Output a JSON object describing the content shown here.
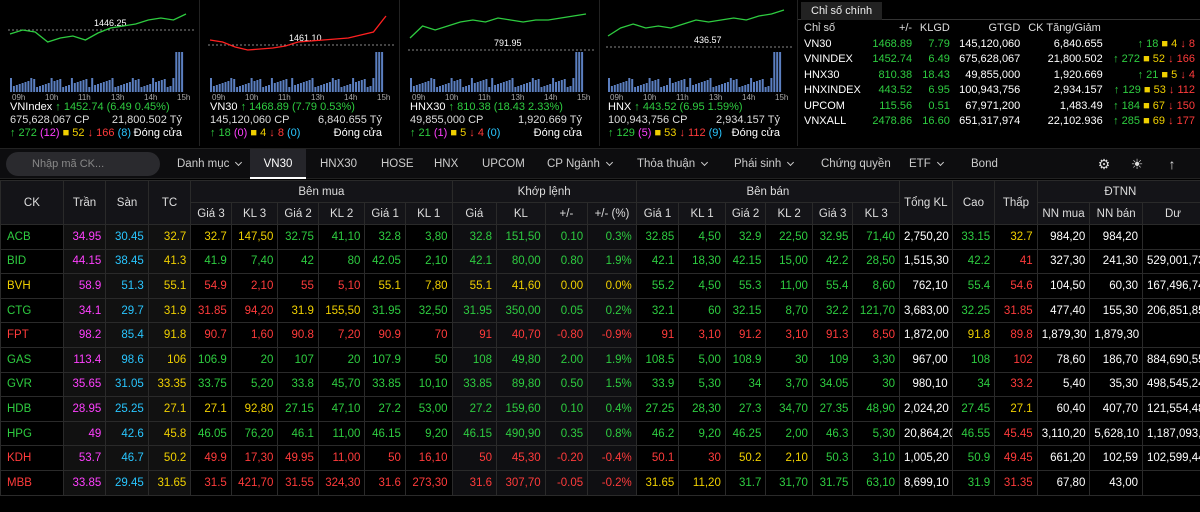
{
  "mini_charts": [
    {
      "name": "VNIndex",
      "ref_label": "1446.25",
      "value": "1452.74",
      "change": "(6.49  0.45%)",
      "vol": "675,628,067 CP",
      "val": "21,800.502 Tỷ",
      "adv": "272",
      "adv_c": "(12)",
      "unch": "52",
      "dec": "166",
      "dec_c": "(8)",
      "status": "Đóng cửa",
      "times": [
        "09h",
        "10h",
        "11h",
        "13h",
        "14h",
        "15h"
      ]
    },
    {
      "name": "VN30",
      "ref_label": "1461.10",
      "value": "1468.89",
      "change": "(7.79  0.53%)",
      "vol": "145,120,060 CP",
      "val": "6,840.655 Tỷ",
      "adv": "18",
      "adv_c": "(0)",
      "unch": "4",
      "dec": "8",
      "dec_c": "(0)",
      "status": "Đóng cửa",
      "times": [
        "09h",
        "10h",
        "11h",
        "13h",
        "14h",
        "15h"
      ]
    },
    {
      "name": "HNX30",
      "ref_label": "791.95",
      "value": "810.38",
      "change": "(18.43  2.33%)",
      "vol": "49,855,000 CP",
      "val": "1,920.669 Tỷ",
      "adv": "21",
      "adv_c": "(1)",
      "unch": "5",
      "dec": "4",
      "dec_c": "(0)",
      "status": "Đóng cửa",
      "times": [
        "09h",
        "10h",
        "11h",
        "13h",
        "14h",
        "15h"
      ]
    },
    {
      "name": "HNX",
      "ref_label": "436.57",
      "value": "443.52",
      "change": "(6.95  1.59%)",
      "vol": "100,943,756 CP",
      "val": "2,934.157 Tỷ",
      "adv": "129",
      "adv_c": "(5)",
      "unch": "53",
      "dec": "112",
      "dec_c": "(9)",
      "status": "Đóng cửa",
      "times": [
        "09h",
        "10h",
        "11h",
        "13h",
        "14h",
        "15h"
      ]
    }
  ],
  "index_panel": {
    "tab": "Chỉ số chính",
    "headers": [
      "Chỉ số",
      "+/-",
      "KLGD",
      "GTGD",
      "CK Tăng/Giảm"
    ],
    "rows": [
      {
        "name": "VN30",
        "value": "1468.89",
        "chg": "7.79",
        "vol": "145,120,060",
        "val": "6,840.655",
        "up": "18",
        "eq": "4",
        "down": "8",
        "color": "g"
      },
      {
        "name": "VNINDEX",
        "value": "1452.74",
        "chg": "6.49",
        "vol": "675,628,067",
        "val": "21,800.502",
        "up": "272",
        "eq": "52",
        "down": "166",
        "color": "g"
      },
      {
        "name": "HNX30",
        "value": "810.38",
        "chg": "18.43",
        "vol": "49,855,000",
        "val": "1,920.669",
        "up": "21",
        "eq": "5",
        "down": "4",
        "color": "g"
      },
      {
        "name": "HNXINDEX",
        "value": "443.52",
        "chg": "6.95",
        "vol": "100,943,756",
        "val": "2,934.157",
        "up": "129",
        "eq": "53",
        "down": "112",
        "color": "g"
      },
      {
        "name": "UPCOM",
        "value": "115.56",
        "chg": "0.51",
        "vol": "67,971,200",
        "val": "1,483.49",
        "up": "184",
        "eq": "67",
        "down": "150",
        "color": "g"
      },
      {
        "name": "VNXALL",
        "value": "2478.86",
        "chg": "16.60",
        "vol": "651,317,974",
        "val": "22,102.936",
        "up": "285",
        "eq": "69",
        "down": "177",
        "color": "g"
      }
    ]
  },
  "toolbar": {
    "search_placeholder": "Nhập mã CK...",
    "tabs": [
      {
        "label": "Danh mục",
        "dropdown": true
      },
      {
        "label": "VN30",
        "dropdown": false,
        "active": true
      },
      {
        "label": "HNX30",
        "dropdown": false
      },
      {
        "label": "HOSE",
        "dropdown": false
      },
      {
        "label": "HNX",
        "dropdown": false
      },
      {
        "label": "UPCOM",
        "dropdown": false
      },
      {
        "label": "CP Ngành",
        "dropdown": true
      },
      {
        "label": "Thỏa thuận",
        "dropdown": true
      },
      {
        "label": "Phái sinh",
        "dropdown": true
      },
      {
        "label": "Chứng quyền",
        "dropdown": false
      },
      {
        "label": "ETF",
        "dropdown": true
      },
      {
        "label": "Bond",
        "dropdown": false
      }
    ]
  },
  "board": {
    "group_headers": {
      "buy": "Bên mua",
      "match": "Khớp lệnh",
      "sell": "Bên bán",
      "foreign": "ĐTNN"
    },
    "headers": {
      "ck": "CK",
      "ceil": "Trần",
      "floor": "Sàn",
      "ref": "TC",
      "total": "Tổng KL",
      "high": "Cao",
      "low": "Thấp"
    },
    "sub_headers": [
      "Giá 3",
      "KL 3",
      "Giá 2",
      "KL 2",
      "Giá 1",
      "KL 1",
      "Giá",
      "KL",
      "+/-",
      "+/- (%)",
      "Giá 1",
      "KL 1",
      "Giá 2",
      "KL 2",
      "Giá 3",
      "KL 3",
      "NN mua",
      "NN bán",
      "Dư"
    ],
    "rows": [
      {
        "ck": "ACB",
        "c": "g",
        "ceil": "34.95",
        "floor": "30.45",
        "ref": "32.7",
        "b3": [
          "32.7",
          "y"
        ],
        "kb3": "147,50",
        "b2": [
          "32.75",
          "g"
        ],
        "kb2": "41,10",
        "b1": [
          "32.8",
          "g"
        ],
        "kb1": "3,80",
        "p": [
          "32.8",
          "g"
        ],
        "kl": "151,50",
        "ch": "0.10",
        "pc": "0.3%",
        "s1": [
          "32.85",
          "g"
        ],
        "ks1": "4,50",
        "s2": [
          "32.9",
          "g"
        ],
        "ks2": "22,50",
        "s3": [
          "32.95",
          "g"
        ],
        "ks3": "71,40",
        "tot": "2,750,20",
        "hi": [
          "33.15",
          "g"
        ],
        "lo": [
          "32.7",
          "y"
        ],
        "nnb": "984,20",
        "nns": "984,20",
        "du": ""
      },
      {
        "ck": "BID",
        "c": "g",
        "ceil": "44.15",
        "floor": "38.45",
        "ref": "41.3",
        "b3": [
          "41.9",
          "g"
        ],
        "kb3": "7,40",
        "b2": [
          "42",
          "g"
        ],
        "kb2": "80",
        "b1": [
          "42.05",
          "g"
        ],
        "kb1": "2,10",
        "p": [
          "42.1",
          "g"
        ],
        "kl": "80,00",
        "ch": "0.80",
        "pc": "1.9%",
        "s1": [
          "42.1",
          "g"
        ],
        "ks1": "18,30",
        "s2": [
          "42.15",
          "g"
        ],
        "ks2": "15,00",
        "s3": [
          "42.2",
          "g"
        ],
        "ks3": "28,50",
        "tot": "1,515,30",
        "hi": [
          "42.2",
          "g"
        ],
        "lo": [
          "41",
          "r"
        ],
        "nnb": "327,30",
        "nns": "241,30",
        "du": "529,001,73"
      },
      {
        "ck": "BVH",
        "c": "y",
        "ceil": "58.9",
        "floor": "51.3",
        "ref": "55.1",
        "b3": [
          "54.9",
          "r"
        ],
        "kb3": "2,10",
        "b2": [
          "55",
          "r"
        ],
        "kb2": "5,10",
        "b1": [
          "55.1",
          "y"
        ],
        "kb1": "7,80",
        "p": [
          "55.1",
          "y"
        ],
        "kl": "41,60",
        "ch": "0.00",
        "pc": "0.0%",
        "s1": [
          "55.2",
          "g"
        ],
        "ks1": "4,50",
        "s2": [
          "55.3",
          "g"
        ],
        "ks2": "11,00",
        "s3": [
          "55.4",
          "g"
        ],
        "ks3": "8,60",
        "tot": "762,10",
        "hi": [
          "55.4",
          "g"
        ],
        "lo": [
          "54.6",
          "r"
        ],
        "nnb": "104,50",
        "nns": "60,30",
        "du": "167,496,74"
      },
      {
        "ck": "CTG",
        "c": "g",
        "ceil": "34.1",
        "floor": "29.7",
        "ref": "31.9",
        "b3": [
          "31.85",
          "r"
        ],
        "kb3": "94,20",
        "b2": [
          "31.9",
          "y"
        ],
        "kb2": "155,50",
        "b1": [
          "31.95",
          "g"
        ],
        "kb1": "32,50",
        "p": [
          "31.95",
          "g"
        ],
        "kl": "350,00",
        "ch": "0.05",
        "pc": "0.2%",
        "s1": [
          "32.1",
          "g"
        ],
        "ks1": "60",
        "s2": [
          "32.15",
          "g"
        ],
        "ks2": "8,70",
        "s3": [
          "32.2",
          "g"
        ],
        "ks3": "121,70",
        "tot": "3,683,00",
        "hi": [
          "32.25",
          "g"
        ],
        "lo": [
          "31.85",
          "r"
        ],
        "nnb": "477,40",
        "nns": "155,30",
        "du": "206,851,85"
      },
      {
        "ck": "FPT",
        "c": "r",
        "ceil": "98.2",
        "floor": "85.4",
        "ref": "91.8",
        "b3": [
          "90.7",
          "r"
        ],
        "kb3": "1,60",
        "b2": [
          "90.8",
          "r"
        ],
        "kb2": "7,20",
        "b1": [
          "90.9",
          "r"
        ],
        "kb1": "70",
        "p": [
          "91",
          "r"
        ],
        "kl": "40,70",
        "ch": "-0.80",
        "pc": "-0.9%",
        "s1": [
          "91",
          "r"
        ],
        "ks1": "3,10",
        "s2": [
          "91.2",
          "r"
        ],
        "ks2": "3,10",
        "s3": [
          "91.3",
          "r"
        ],
        "ks3": "8,50",
        "tot": "1,872,00",
        "hi": [
          "91.8",
          "y"
        ],
        "lo": [
          "89.8",
          "r"
        ],
        "nnb": "1,879,30",
        "nns": "1,879,30",
        "du": ""
      },
      {
        "ck": "GAS",
        "c": "g",
        "ceil": "113.4",
        "floor": "98.6",
        "ref": "106",
        "b3": [
          "106.9",
          "g"
        ],
        "kb3": "20",
        "b2": [
          "107",
          "g"
        ],
        "kb2": "20",
        "b1": [
          "107.9",
          "g"
        ],
        "kb1": "50",
        "p": [
          "108",
          "g"
        ],
        "kl": "49,80",
        "ch": "2.00",
        "pc": "1.9%",
        "s1": [
          "108.5",
          "g"
        ],
        "ks1": "5,00",
        "s2": [
          "108.9",
          "g"
        ],
        "ks2": "30",
        "s3": [
          "109",
          "g"
        ],
        "ks3": "3,30",
        "tot": "967,00",
        "hi": [
          "108",
          "g"
        ],
        "lo": [
          "102",
          "r"
        ],
        "nnb": "78,60",
        "nns": "186,70",
        "du": "884,690,55"
      },
      {
        "ck": "GVR",
        "c": "g",
        "ceil": "35.65",
        "floor": "31.05",
        "ref": "33.35",
        "b3": [
          "33.75",
          "g"
        ],
        "kb3": "5,20",
        "b2": [
          "33.8",
          "g"
        ],
        "kb2": "45,70",
        "b1": [
          "33.85",
          "g"
        ],
        "kb1": "10,10",
        "p": [
          "33.85",
          "g"
        ],
        "kl": "89,80",
        "ch": "0.50",
        "pc": "1.5%",
        "s1": [
          "33.9",
          "g"
        ],
        "ks1": "5,30",
        "s2": [
          "34",
          "g"
        ],
        "ks2": "3,70",
        "s3": [
          "34.05",
          "g"
        ],
        "ks3": "30",
        "tot": "980,10",
        "hi": [
          "34",
          "g"
        ],
        "lo": [
          "33.2",
          "r"
        ],
        "nnb": "5,40",
        "nns": "35,30",
        "du": "498,545,24"
      },
      {
        "ck": "HDB",
        "c": "g",
        "ceil": "28.95",
        "floor": "25.25",
        "ref": "27.1",
        "b3": [
          "27.1",
          "y"
        ],
        "kb3": "92,80",
        "b2": [
          "27.15",
          "g"
        ],
        "kb2": "47,10",
        "b1": [
          "27.2",
          "g"
        ],
        "kb1": "53,00",
        "p": [
          "27.2",
          "g"
        ],
        "kl": "159,60",
        "ch": "0.10",
        "pc": "0.4%",
        "s1": [
          "27.25",
          "g"
        ],
        "ks1": "28,30",
        "s2": [
          "27.3",
          "g"
        ],
        "ks2": "34,70",
        "s3": [
          "27.35",
          "g"
        ],
        "ks3": "48,90",
        "tot": "2,024,20",
        "hi": [
          "27.45",
          "g"
        ],
        "lo": [
          "27.1",
          "y"
        ],
        "nnb": "60,40",
        "nns": "407,70",
        "du": "121,554,48"
      },
      {
        "ck": "HPG",
        "c": "g",
        "ceil": "49",
        "floor": "42.6",
        "ref": "45.8",
        "b3": [
          "46.05",
          "g"
        ],
        "kb3": "76,20",
        "b2": [
          "46.1",
          "g"
        ],
        "kb2": "11,00",
        "b1": [
          "46.15",
          "g"
        ],
        "kb1": "9,20",
        "p": [
          "46.15",
          "g"
        ],
        "kl": "490,90",
        "ch": "0.35",
        "pc": "0.8%",
        "s1": [
          "46.2",
          "g"
        ],
        "ks1": "9,20",
        "s2": [
          "46.25",
          "g"
        ],
        "ks2": "2,00",
        "s3": [
          "46.3",
          "g"
        ],
        "ks3": "5,30",
        "tot": "20,864,20",
        "hi": [
          "46.55",
          "g"
        ],
        "lo": [
          "45.45",
          "r"
        ],
        "nnb": "3,110,20",
        "nns": "5,628,10",
        "du": "1,187,093,69"
      },
      {
        "ck": "KDH",
        "c": "r",
        "ceil": "53.7",
        "floor": "46.7",
        "ref": "50.2",
        "b3": [
          "49.9",
          "r"
        ],
        "kb3": "17,30",
        "b2": [
          "49.95",
          "r"
        ],
        "kb2": "11,00",
        "b1": [
          "50",
          "r"
        ],
        "kb1": "16,10",
        "p": [
          "50",
          "r"
        ],
        "kl": "45,30",
        "ch": "-0.20",
        "pc": "-0.4%",
        "s1": [
          "50.1",
          "r"
        ],
        "ks1": "30",
        "s2": [
          "50.2",
          "y"
        ],
        "ks2": "2,10",
        "s3": [
          "50.3",
          "g"
        ],
        "ks3": "3,10",
        "tot": "1,005,20",
        "hi": [
          "50.9",
          "g"
        ],
        "lo": [
          "49.45",
          "r"
        ],
        "nnb": "661,20",
        "nns": "102,59",
        "du": "102,599,44"
      },
      {
        "ck": "MBB",
        "c": "r",
        "ceil": "33.85",
        "floor": "29.45",
        "ref": "31.65",
        "b3": [
          "31.5",
          "r"
        ],
        "kb3": "421,70",
        "b2": [
          "31.55",
          "r"
        ],
        "kb2": "324,30",
        "b1": [
          "31.6",
          "r"
        ],
        "kb1": "273,30",
        "p": [
          "31.6",
          "r"
        ],
        "kl": "307,70",
        "ch": "-0.05",
        "pc": "-0.2%",
        "s1": [
          "31.65",
          "y"
        ],
        "ks1": "11,20",
        "s2": [
          "31.7",
          "g"
        ],
        "ks2": "31,70",
        "s3": [
          "31.75",
          "g"
        ],
        "ks3": "63,10",
        "tot": "8,699,10",
        "hi": [
          "31.9",
          "g"
        ],
        "lo": [
          "31.35",
          "r"
        ],
        "nnb": "67,80",
        "nns": "43,00",
        "du": ""
      }
    ]
  }
}
